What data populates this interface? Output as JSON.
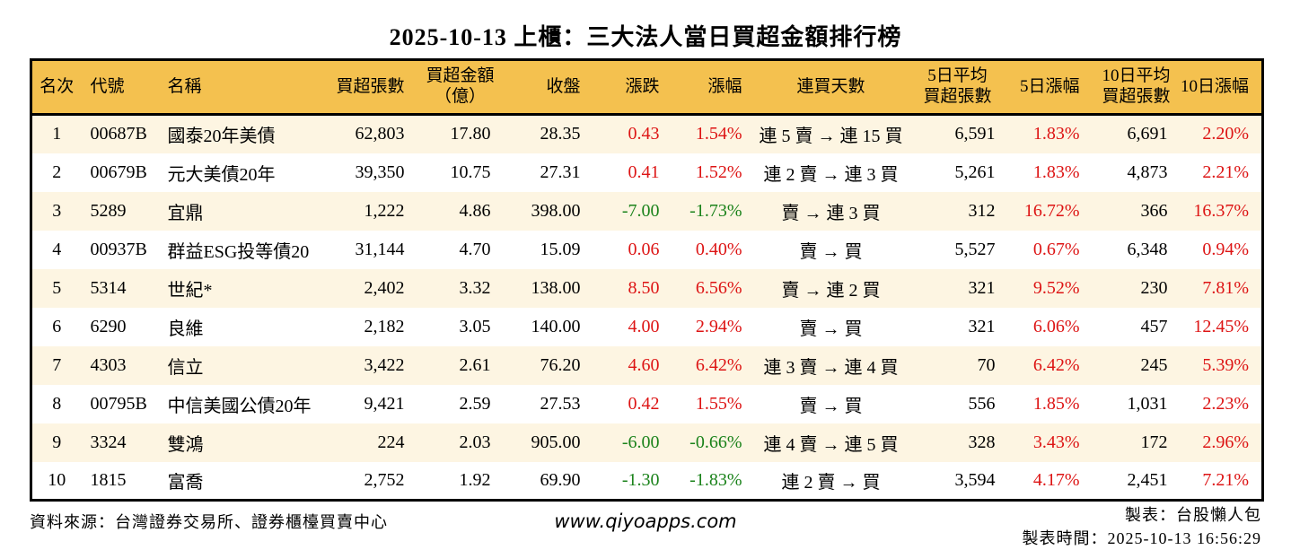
{
  "title": "2025-10-13 上櫃：三大法人當日買超金額排行榜",
  "colors": {
    "header_bg": "#f4c14f",
    "row_alt_bg": "#fdf5e2",
    "row_bg": "#ffffff",
    "border": "#000000",
    "up_red": "#dd1414",
    "down_green": "#1a821a"
  },
  "chart_data": {
    "type": "table",
    "title": "2025-10-13 上櫃：三大法人當日買超金額排行榜",
    "columns": [
      {
        "key": "rank",
        "label": "名次",
        "label2": "",
        "align": "center"
      },
      {
        "key": "code",
        "label": "代號",
        "label2": "",
        "align": "left"
      },
      {
        "key": "name",
        "label": "名稱",
        "label2": "",
        "align": "left"
      },
      {
        "key": "vol",
        "label": "買超張數",
        "label2": "",
        "align": "right"
      },
      {
        "key": "amt",
        "label": "買超金額",
        "label2": "（億）",
        "align": "right",
        "header_align": "center"
      },
      {
        "key": "close",
        "label": "收盤",
        "label2": "",
        "align": "right"
      },
      {
        "key": "chg",
        "label": "漲跌",
        "label2": "",
        "align": "right"
      },
      {
        "key": "chgp",
        "label": "漲幅",
        "label2": "",
        "align": "right"
      },
      {
        "key": "streak",
        "label": "連買天數",
        "label2": "",
        "align": "center"
      },
      {
        "key": "avg5",
        "label": "5日平均",
        "label2": "買超張數",
        "align": "right",
        "header_align": "center"
      },
      {
        "key": "pct5",
        "label": "5日漲幅",
        "label2": "",
        "align": "right"
      },
      {
        "key": "avg10",
        "label": "10日平均",
        "label2": "買超張數",
        "align": "right",
        "header_align": "center"
      },
      {
        "key": "pct10",
        "label": "10日漲幅",
        "label2": "",
        "align": "right"
      }
    ],
    "rows": [
      {
        "rank": "1",
        "code": "00687B",
        "name": "國泰20年美債",
        "vol": "62,803",
        "amt": "17.80",
        "close": "28.35",
        "chg": "0.43",
        "chg_dir": "up",
        "chgp": "1.54%",
        "streak": "連 5 賣 → 連 15 買",
        "avg5": "6,591",
        "pct5": "1.83%",
        "pct5_dir": "up",
        "avg10": "6,691",
        "pct10": "2.20%",
        "pct10_dir": "up"
      },
      {
        "rank": "2",
        "code": "00679B",
        "name": "元大美債20年",
        "vol": "39,350",
        "amt": "10.75",
        "close": "27.31",
        "chg": "0.41",
        "chg_dir": "up",
        "chgp": "1.52%",
        "streak": "連 2 賣 → 連 3 買",
        "avg5": "5,261",
        "pct5": "1.83%",
        "pct5_dir": "up",
        "avg10": "4,873",
        "pct10": "2.21%",
        "pct10_dir": "up"
      },
      {
        "rank": "3",
        "code": "5289",
        "name": "宜鼎",
        "vol": "1,222",
        "amt": "4.86",
        "close": "398.00",
        "chg": "-7.00",
        "chg_dir": "down",
        "chgp": "-1.73%",
        "streak": "賣 → 連 3 買",
        "avg5": "312",
        "pct5": "16.72%",
        "pct5_dir": "up",
        "avg10": "366",
        "pct10": "16.37%",
        "pct10_dir": "up"
      },
      {
        "rank": "4",
        "code": "00937B",
        "name": "群益ESG投等債20",
        "vol": "31,144",
        "amt": "4.70",
        "close": "15.09",
        "chg": "0.06",
        "chg_dir": "up",
        "chgp": "0.40%",
        "streak": "賣 → 買",
        "avg5": "5,527",
        "pct5": "0.67%",
        "pct5_dir": "up",
        "avg10": "6,348",
        "pct10": "0.94%",
        "pct10_dir": "up"
      },
      {
        "rank": "5",
        "code": "5314",
        "name": "世紀*",
        "vol": "2,402",
        "amt": "3.32",
        "close": "138.00",
        "chg": "8.50",
        "chg_dir": "up",
        "chgp": "6.56%",
        "streak": "賣 → 連 2 買",
        "avg5": "321",
        "pct5": "9.52%",
        "pct5_dir": "up",
        "avg10": "230",
        "pct10": "7.81%",
        "pct10_dir": "up"
      },
      {
        "rank": "6",
        "code": "6290",
        "name": "良維",
        "vol": "2,182",
        "amt": "3.05",
        "close": "140.00",
        "chg": "4.00",
        "chg_dir": "up",
        "chgp": "2.94%",
        "streak": "賣 → 買",
        "avg5": "321",
        "pct5": "6.06%",
        "pct5_dir": "up",
        "avg10": "457",
        "pct10": "12.45%",
        "pct10_dir": "up"
      },
      {
        "rank": "7",
        "code": "4303",
        "name": "信立",
        "vol": "3,422",
        "amt": "2.61",
        "close": "76.20",
        "chg": "4.60",
        "chg_dir": "up",
        "chgp": "6.42%",
        "streak": "連 3 賣 → 連 4 買",
        "avg5": "70",
        "pct5": "6.42%",
        "pct5_dir": "up",
        "avg10": "245",
        "pct10": "5.39%",
        "pct10_dir": "up"
      },
      {
        "rank": "8",
        "code": "00795B",
        "name": "中信美國公債20年",
        "vol": "9,421",
        "amt": "2.59",
        "close": "27.53",
        "chg": "0.42",
        "chg_dir": "up",
        "chgp": "1.55%",
        "streak": "賣 → 買",
        "avg5": "556",
        "pct5": "1.85%",
        "pct5_dir": "up",
        "avg10": "1,031",
        "pct10": "2.23%",
        "pct10_dir": "up"
      },
      {
        "rank": "9",
        "code": "3324",
        "name": "雙鴻",
        "vol": "224",
        "amt": "2.03",
        "close": "905.00",
        "chg": "-6.00",
        "chg_dir": "down",
        "chgp": "-0.66%",
        "streak": "連 4 賣 → 連 5 買",
        "avg5": "328",
        "pct5": "3.43%",
        "pct5_dir": "up",
        "avg10": "172",
        "pct10": "2.96%",
        "pct10_dir": "up"
      },
      {
        "rank": "10",
        "code": "1815",
        "name": "富喬",
        "vol": "2,752",
        "amt": "1.92",
        "close": "69.90",
        "chg": "-1.30",
        "chg_dir": "down",
        "chgp": "-1.83%",
        "streak": "連 2 賣 → 買",
        "avg5": "3,594",
        "pct5": "4.17%",
        "pct5_dir": "up",
        "avg10": "2,451",
        "pct10": "7.21%",
        "pct10_dir": "up"
      }
    ]
  },
  "footer": {
    "source": "資料來源：台灣證券交易所、證券櫃檯買賣中心",
    "website": "www.qiyoapps.com",
    "credit": "製表：台股懶人包",
    "timestamp": "製表時間：2025-10-13 16:56:29"
  }
}
